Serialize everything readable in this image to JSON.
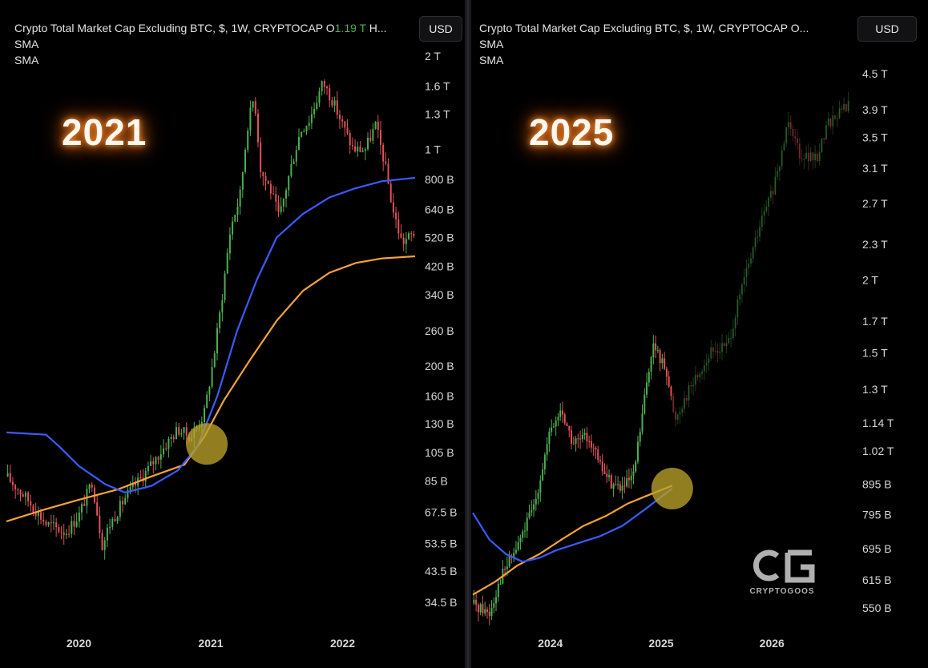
{
  "colors": {
    "up": "#4caf50",
    "down": "#e0525a",
    "sma_short": "#3a5bff",
    "sma_long": "#f5a13c",
    "marker": "#b8a22a",
    "background": "#000000"
  },
  "left_panel": {
    "legend_title": "Crypto Total Market Cap Excluding BTC, $, 1W, CRYPTOCAP",
    "legend_o": "O",
    "legend_o_value": "1.19 T",
    "legend_h": "H...",
    "legend_sma1": "SMA",
    "legend_sma2": "SMA",
    "currency_button": "USD",
    "year_label": "2021"
  },
  "right_panel": {
    "legend_title": "Crypto Total Market Cap Excluding BTC, $, 1W, CRYPTOCAP",
    "legend_o": "O...",
    "legend_sma1": "SMA",
    "legend_sma2": "SMA",
    "currency_button": "USD",
    "year_label": "2025",
    "watermark_text": "CRYPTOGOOS"
  },
  "chart_data": [
    {
      "type": "candlestick",
      "title": "Crypto Total Market Cap Excluding BTC, $, 1W, CRYPTOCAP",
      "y_scale": "log",
      "ylim_usd": [
        31000000000,
        2100000000000
      ],
      "y_ticks": [
        "2 T",
        "1.6 T",
        "1.3 T",
        "1 T",
        "800 B",
        "640 B",
        "520 B",
        "420 B",
        "340 B",
        "260 B",
        "200 B",
        "160 B",
        "130 B",
        "105 B",
        "85 B",
        "67.5 B",
        "53.5 B",
        "43.5 B",
        "34.5 B"
      ],
      "y_tick_values": [
        2000,
        1600,
        1300,
        1000,
        800,
        640,
        520,
        420,
        340,
        260,
        200,
        160,
        130,
        105,
        85,
        67.5,
        53.5,
        43.5,
        34.5
      ],
      "x_ticks": [
        "2020",
        "2021",
        "2022"
      ],
      "x_tick_dates": [
        2020.0,
        2021.0,
        2022.0
      ],
      "x_range": [
        2019.45,
        2022.55
      ],
      "price_path_billions": [
        [
          2019.45,
          88
        ],
        [
          2019.6,
          75
        ],
        [
          2019.75,
          62
        ],
        [
          2019.9,
          58
        ],
        [
          2020.0,
          66
        ],
        [
          2020.1,
          85
        ],
        [
          2020.18,
          52
        ],
        [
          2020.22,
          60
        ],
        [
          2020.35,
          75
        ],
        [
          2020.5,
          90
        ],
        [
          2020.65,
          110
        ],
        [
          2020.75,
          125
        ],
        [
          2020.85,
          118
        ],
        [
          2020.95,
          140
        ],
        [
          2021.02,
          210
        ],
        [
          2021.08,
          320
        ],
        [
          2021.15,
          560
        ],
        [
          2021.22,
          700
        ],
        [
          2021.28,
          1200
        ],
        [
          2021.33,
          1500
        ],
        [
          2021.38,
          850
        ],
        [
          2021.45,
          750
        ],
        [
          2021.52,
          600
        ],
        [
          2021.6,
          850
        ],
        [
          2021.68,
          1150
        ],
        [
          2021.75,
          1250
        ],
        [
          2021.85,
          1650
        ],
        [
          2021.92,
          1450
        ],
        [
          2022.0,
          1200
        ],
        [
          2022.08,
          1000
        ],
        [
          2022.17,
          1000
        ],
        [
          2022.25,
          1200
        ],
        [
          2022.32,
          900
        ],
        [
          2022.38,
          640
        ],
        [
          2022.45,
          500
        ],
        [
          2022.55,
          540
        ]
      ],
      "sma_short_billions": [
        [
          2019.45,
          122
        ],
        [
          2019.75,
          120
        ],
        [
          2019.85,
          110
        ],
        [
          2020.0,
          95
        ],
        [
          2020.2,
          83
        ],
        [
          2020.35,
          78
        ],
        [
          2020.55,
          82
        ],
        [
          2020.75,
          92
        ],
        [
          2020.9,
          110
        ],
        [
          2021.05,
          160
        ],
        [
          2021.2,
          260
        ],
        [
          2021.35,
          380
        ],
        [
          2021.5,
          520
        ],
        [
          2021.7,
          620
        ],
        [
          2021.9,
          700
        ],
        [
          2022.1,
          750
        ],
        [
          2022.3,
          790
        ],
        [
          2022.55,
          810
        ]
      ],
      "sma_long_billions": [
        [
          2019.45,
          63
        ],
        [
          2019.75,
          69
        ],
        [
          2020.0,
          74
        ],
        [
          2020.3,
          80
        ],
        [
          2020.55,
          88
        ],
        [
          2020.8,
          96
        ],
        [
          2020.95,
          118
        ],
        [
          2021.1,
          155
        ],
        [
          2021.3,
          210
        ],
        [
          2021.5,
          280
        ],
        [
          2021.7,
          350
        ],
        [
          2021.9,
          400
        ],
        [
          2022.1,
          430
        ],
        [
          2022.3,
          445
        ],
        [
          2022.55,
          452
        ]
      ],
      "highlight_marker": {
        "date": 2020.97,
        "value_billions": 112
      }
    },
    {
      "type": "candlestick",
      "title": "Crypto Total Market Cap Excluding BTC, $, 1W, CRYPTOCAP",
      "y_scale": "log",
      "ylim_usd": [
        530000000000,
        4700000000000
      ],
      "y_ticks": [
        "4.5 T",
        "3.9 T",
        "3.5 T",
        "3.1 T",
        "2.7 T",
        "2.3 T",
        "2 T",
        "1.7 T",
        "1.5 T",
        "1.3 T",
        "1.14 T",
        "1.02 T",
        "895 B",
        "795 B",
        "695 B",
        "615 B",
        "550 B"
      ],
      "y_tick_values": [
        4500,
        3900,
        3500,
        3100,
        2700,
        2300,
        2000,
        1700,
        1500,
        1300,
        1140,
        1020,
        895,
        795,
        695,
        615,
        550
      ],
      "x_ticks": [
        "2024",
        "2025",
        "2026"
      ],
      "x_tick_dates": [
        2024.0,
        2025.0,
        2026.0
      ],
      "x_range": [
        2023.3,
        2026.7
      ],
      "price_path_billions": [
        [
          2023.3,
          560
        ],
        [
          2023.45,
          540
        ],
        [
          2023.55,
          620
        ],
        [
          2023.7,
          700
        ],
        [
          2023.85,
          820
        ],
        [
          2023.95,
          1000
        ],
        [
          2024.0,
          1100
        ],
        [
          2024.1,
          1200
        ],
        [
          2024.2,
          1050
        ],
        [
          2024.35,
          1080
        ],
        [
          2024.45,
          960
        ],
        [
          2024.55,
          900
        ],
        [
          2024.65,
          880
        ],
        [
          2024.75,
          920
        ],
        [
          2024.85,
          1250
        ],
        [
          2024.92,
          1550
        ],
        [
          2025.05,
          1400
        ],
        [
          2025.12,
          1150
        ],
        [
          2025.25,
          1300
        ],
        [
          2025.45,
          1500
        ],
        [
          2025.6,
          1550
        ],
        [
          2025.75,
          2000
        ],
        [
          2025.9,
          2500
        ],
        [
          2026.05,
          3000
        ],
        [
          2026.15,
          3800
        ],
        [
          2026.25,
          3300
        ],
        [
          2026.4,
          3200
        ],
        [
          2026.5,
          3700
        ],
        [
          2026.7,
          4000
        ]
      ],
      "forecast_from_date": 2025.1,
      "sma_short_billions": [
        [
          2023.3,
          800
        ],
        [
          2023.45,
          720
        ],
        [
          2023.6,
          680
        ],
        [
          2023.75,
          660
        ],
        [
          2023.9,
          670
        ],
        [
          2024.05,
          690
        ],
        [
          2024.25,
          710
        ],
        [
          2024.45,
          730
        ],
        [
          2024.65,
          760
        ],
        [
          2024.85,
          810
        ],
        [
          2025.1,
          880
        ]
      ],
      "sma_long_billions": [
        [
          2023.3,
          580
        ],
        [
          2023.5,
          610
        ],
        [
          2023.7,
          650
        ],
        [
          2023.9,
          680
        ],
        [
          2024.1,
          720
        ],
        [
          2024.3,
          760
        ],
        [
          2024.5,
          790
        ],
        [
          2024.7,
          830
        ],
        [
          2024.9,
          860
        ],
        [
          2025.1,
          890
        ]
      ],
      "highlight_marker": {
        "date": 2025.1,
        "value_billions": 880
      }
    }
  ]
}
